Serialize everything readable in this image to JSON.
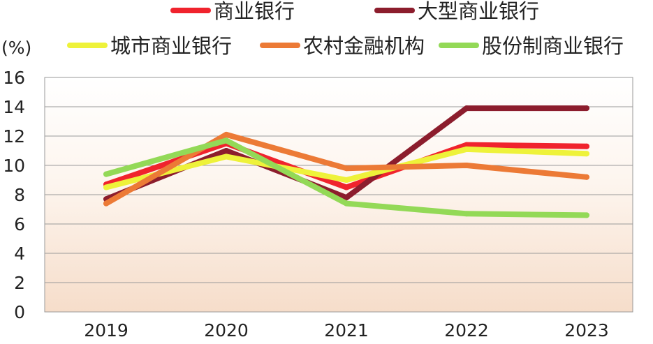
{
  "chart_data": {
    "type": "line",
    "unit_label": "(%)",
    "categories": [
      "2019",
      "2020",
      "2021",
      "2022",
      "2023"
    ],
    "ylim": [
      0,
      16
    ],
    "yticks": [
      "0",
      "2",
      "4",
      "6",
      "8",
      "10",
      "12",
      "14",
      "16"
    ],
    "grid": true,
    "legend_position": "top",
    "series": [
      {
        "name": "商业银行",
        "color": "#f0232d",
        "values": [
          8.7,
          11.5,
          8.5,
          11.4,
          11.3
        ]
      },
      {
        "name": "大型商业银行",
        "color": "#8c1d2d",
        "values": [
          7.7,
          11.0,
          7.8,
          13.9,
          13.9
        ]
      },
      {
        "name": "城市商业银行",
        "color": "#eef23a",
        "values": [
          8.5,
          10.6,
          9.0,
          11.1,
          10.8
        ]
      },
      {
        "name": "农村金融机构",
        "color": "#ec7a36",
        "values": [
          7.4,
          12.1,
          9.8,
          10.0,
          9.2
        ]
      },
      {
        "name": "股份制商业银行",
        "color": "#93d957",
        "values": [
          9.4,
          11.7,
          7.4,
          6.7,
          6.6
        ]
      }
    ]
  }
}
